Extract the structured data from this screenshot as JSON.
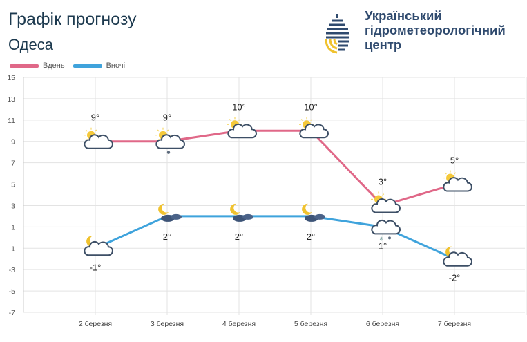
{
  "header": {
    "title": "Графік прогнозу",
    "city": "Одеса"
  },
  "logo": {
    "org_lines": [
      "Український",
      "гідрометеорологічний",
      "центр"
    ]
  },
  "chart_data": {
    "type": "line",
    "categories": [
      "2 березня",
      "3 березня",
      "4 березня",
      "5 березня",
      "6 березня",
      "7 березня"
    ],
    "series": [
      {
        "name": "Вдень",
        "color": "#e06888",
        "values": [
          9,
          9,
          10,
          10,
          3,
          5
        ],
        "labels": [
          "9°",
          "9°",
          "10°",
          "10°",
          "3°",
          "5°"
        ],
        "icons": [
          "sun-cloud",
          "sun-cloud-rain",
          "sun-cloud",
          "sun-cloud",
          "sun-cloud",
          "sun-cloud"
        ]
      },
      {
        "name": "Вночі",
        "color": "#3fa3dc",
        "values": [
          -1,
          2,
          2,
          2,
          1,
          -2
        ],
        "labels": [
          "-1°",
          "2°",
          "2°",
          "2°",
          "1°",
          "-2°"
        ],
        "icons": [
          "moon-cloud",
          "moon-dark-clouds",
          "moon-dark-clouds",
          "moon-dark-clouds",
          "cloud-sleet",
          "moon-cloud"
        ]
      }
    ],
    "yticks": [
      15,
      13,
      11,
      9,
      7,
      5,
      3,
      1,
      -1,
      -3,
      -5,
      -7
    ],
    "ylim": [
      -7,
      15
    ],
    "grid": true,
    "legend": "top-left"
  }
}
